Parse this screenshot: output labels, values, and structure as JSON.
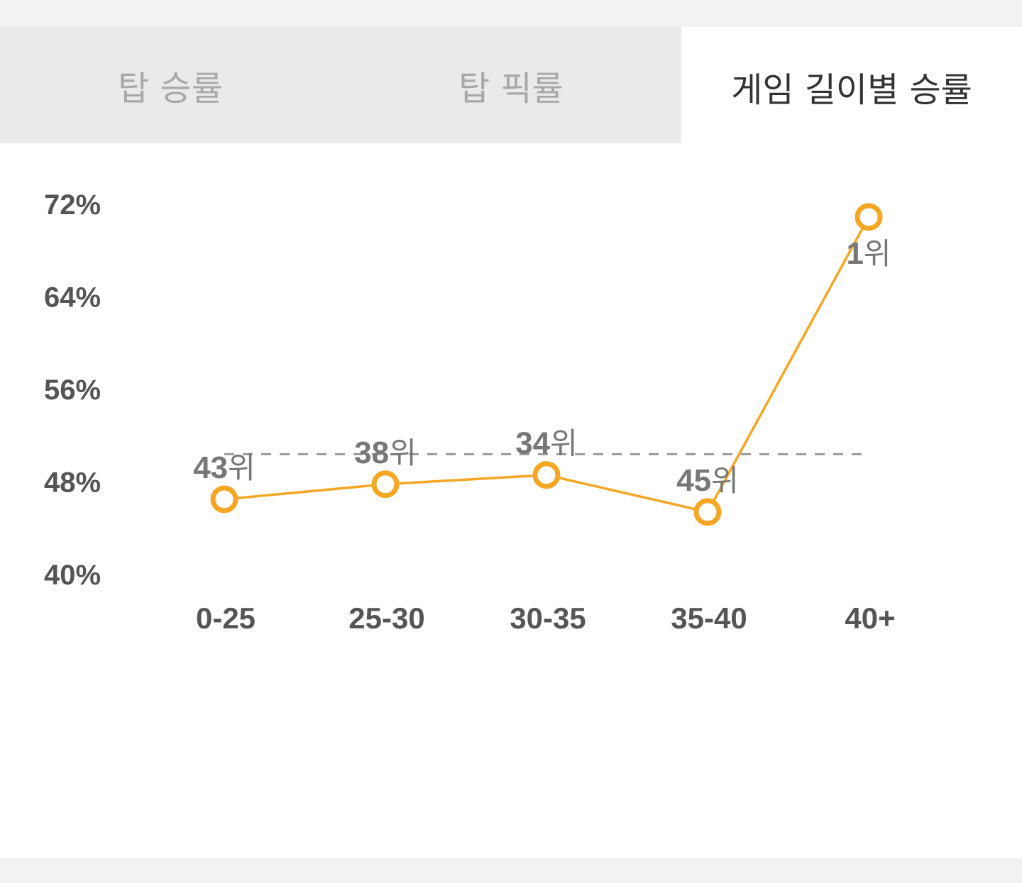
{
  "tabs": [
    {
      "label": "탑 승률",
      "active": false
    },
    {
      "label": "탑 픽률",
      "active": false
    },
    {
      "label": "게임 길이별 승률",
      "active": true
    }
  ],
  "chart_data": {
    "type": "line",
    "categories": [
      "0-25",
      "25-30",
      "30-35",
      "35-40",
      "40+"
    ],
    "values": [
      46.5,
      47.8,
      48.6,
      45.4,
      70.9
    ],
    "rank_numbers": [
      "43",
      "38",
      "34",
      "45",
      "1"
    ],
    "rank_unit": "위",
    "y_ticks": [
      "72%",
      "64%",
      "56%",
      "48%",
      "40%"
    ],
    "y_tick_values": [
      72,
      64,
      56,
      48,
      40
    ],
    "ylim": [
      40,
      72
    ],
    "average_line": 50.4,
    "grid": false,
    "colors": {
      "line": "#f5a623",
      "average": "#999999",
      "point_fill": "#ffffff"
    }
  }
}
